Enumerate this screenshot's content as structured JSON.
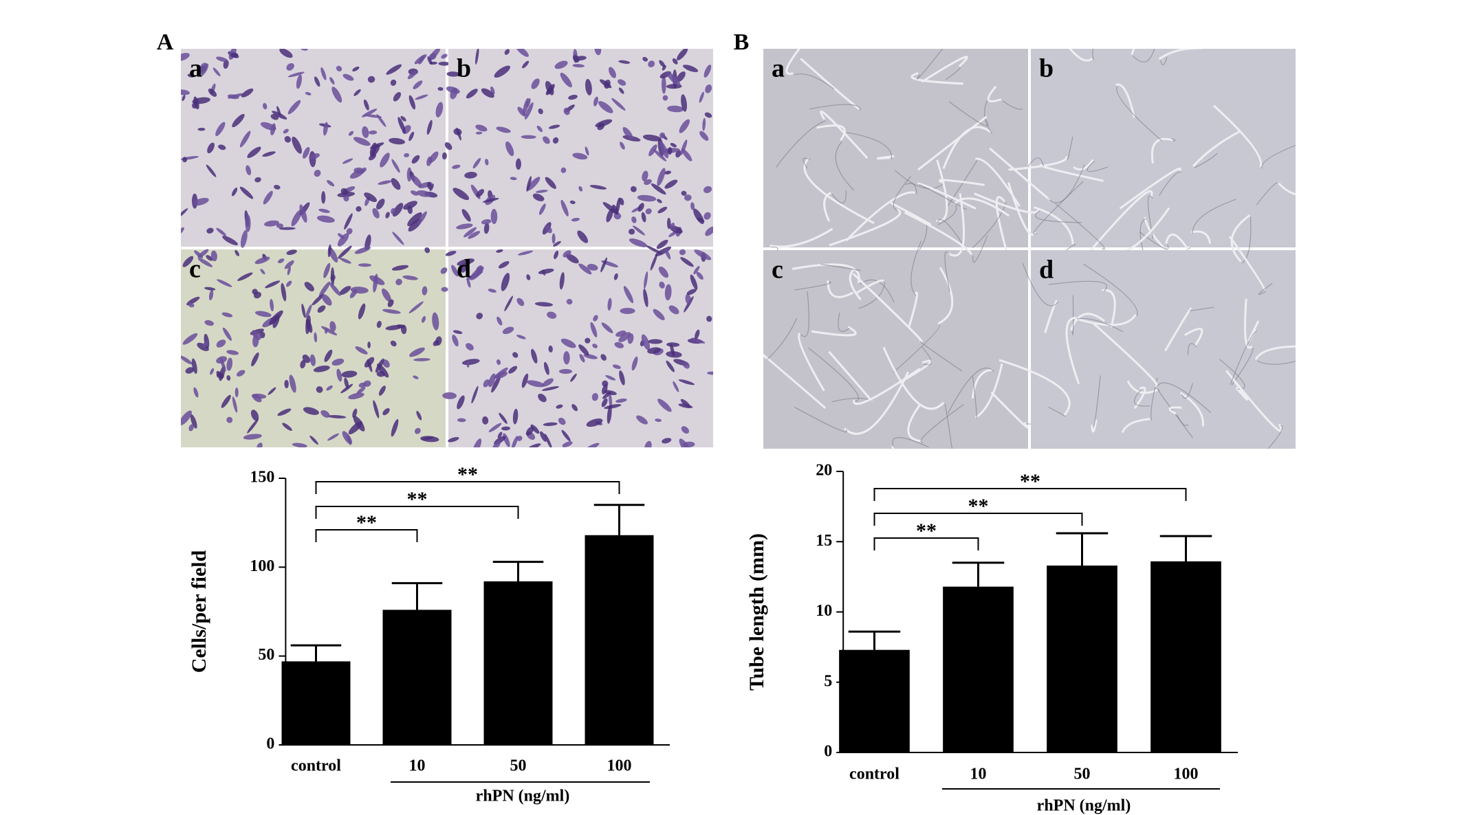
{
  "panels": [
    {
      "label": "A",
      "images": [
        "a",
        "b",
        "c",
        "d"
      ]
    },
    {
      "label": "B",
      "images": [
        "a",
        "b",
        "c",
        "d"
      ]
    }
  ],
  "chart_data": [
    {
      "type": "bar",
      "y_label": "Cells/per field",
      "categories": [
        "control",
        "10",
        "50",
        "100"
      ],
      "values": [
        47,
        76,
        92,
        118
      ],
      "errors": [
        9,
        15,
        11,
        17
      ],
      "color": "#000000",
      "ylim": [
        0,
        150
      ],
      "yticks": [
        0,
        50,
        100,
        150
      ],
      "group_label": "rhPN (ng/ml)",
      "significance": [
        "**",
        "**",
        "**"
      ]
    },
    {
      "type": "bar",
      "y_label": "Tube length (mm)",
      "categories": [
        "control",
        "10",
        "50",
        "100"
      ],
      "values": [
        7.3,
        11.8,
        13.3,
        13.6
      ],
      "errors": [
        1.3,
        1.7,
        2.3,
        1.8
      ],
      "color": "#000000",
      "ylim": [
        0,
        20
      ],
      "yticks": [
        0,
        5,
        10,
        15,
        20
      ],
      "group_label": "rhPN (ng/ml)",
      "significance": [
        "**",
        "**",
        "**"
      ]
    }
  ]
}
